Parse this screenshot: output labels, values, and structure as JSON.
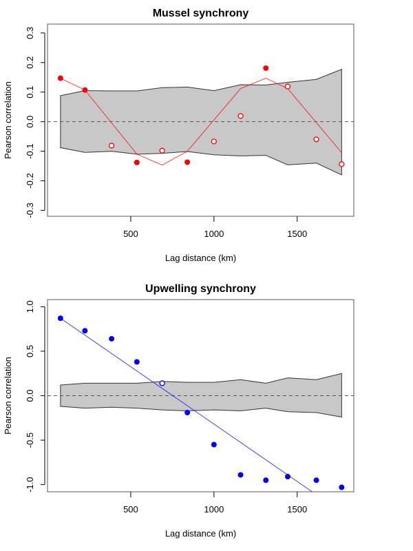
{
  "chart_data": [
    {
      "type": "line",
      "title": "Mussel synchrony",
      "xlabel": "Lag distance (km)",
      "ylabel": "Pearson correlation",
      "xlim": [
        0,
        1840
      ],
      "ylim": [
        -0.32,
        0.33
      ],
      "xticks": [
        500,
        1000,
        1500
      ],
      "xtick_labels": [
        "500",
        "1000",
        "1500"
      ],
      "yticks": [
        -0.3,
        -0.2,
        -0.1,
        0.0,
        0.1,
        0.2,
        0.3
      ],
      "ytick_labels": [
        "-0.3",
        "-0.2",
        "-0.1",
        "0.0",
        "0.1",
        "0.2",
        "0.3"
      ],
      "reference_line": 0.0,
      "color": "#ff0000",
      "x": [
        78,
        225,
        385,
        537,
        689,
        840,
        1000,
        1160,
        1312,
        1443,
        1615,
        1767
      ],
      "values": [
        0.147,
        0.107,
        -0.081,
        -0.138,
        -0.098,
        -0.137,
        -0.067,
        0.019,
        0.181,
        0.119,
        -0.06,
        -0.144
      ],
      "significant": [
        true,
        true,
        false,
        true,
        false,
        true,
        false,
        false,
        true,
        false,
        false,
        false
      ],
      "envelope_upper": [
        0.088,
        0.105,
        0.104,
        0.104,
        0.115,
        0.117,
        0.105,
        0.125,
        0.124,
        0.133,
        0.143,
        0.177
      ],
      "envelope_lower": [
        -0.088,
        -0.104,
        -0.1,
        -0.11,
        -0.107,
        -0.101,
        -0.112,
        -0.116,
        -0.114,
        -0.146,
        -0.14,
        -0.18
      ],
      "fit_line": {
        "x": [
          78,
          225,
          537,
          689,
          840,
          1160,
          1312,
          1443,
          1767
        ],
        "y": [
          0.147,
          0.107,
          -0.11,
          -0.147,
          -0.1,
          0.112,
          0.147,
          0.112,
          -0.105
        ]
      },
      "grid": false
    },
    {
      "type": "scatter",
      "title": "Upwelling synchrony",
      "xlabel": "Lag distance (km)",
      "ylabel": "Pearson correlation",
      "xlim": [
        0,
        1840
      ],
      "ylim": [
        -1.08,
        1.08
      ],
      "xticks": [
        500,
        1000,
        1500
      ],
      "xtick_labels": [
        "500",
        "1000",
        "1500"
      ],
      "yticks": [
        -1.0,
        -0.5,
        0.0,
        0.5,
        1.0
      ],
      "ytick_labels": [
        "-1.0",
        "-0.5",
        "0.0",
        "0.5",
        "1.0"
      ],
      "reference_line": 0.0,
      "color": "#0000ff",
      "x": [
        78,
        225,
        385,
        537,
        689,
        840,
        1000,
        1160,
        1312,
        1443,
        1615,
        1767
      ],
      "values": [
        0.87,
        0.73,
        0.64,
        0.38,
        0.14,
        -0.19,
        -0.55,
        -0.89,
        -0.95,
        -0.91,
        -0.95,
        -1.03
      ],
      "significant": [
        true,
        true,
        true,
        true,
        false,
        true,
        true,
        true,
        true,
        true,
        true,
        true
      ],
      "envelope_upper": [
        0.12,
        0.14,
        0.14,
        0.14,
        0.16,
        0.15,
        0.15,
        0.18,
        0.14,
        0.2,
        0.18,
        0.25
      ],
      "envelope_lower": [
        -0.12,
        -0.14,
        -0.13,
        -0.14,
        -0.16,
        -0.17,
        -0.16,
        -0.17,
        -0.14,
        -0.18,
        -0.19,
        -0.24
      ],
      "fit_line": {
        "x": [
          78,
          1590
        ],
        "y": [
          0.87,
          -1.08
        ]
      },
      "grid": false
    }
  ]
}
